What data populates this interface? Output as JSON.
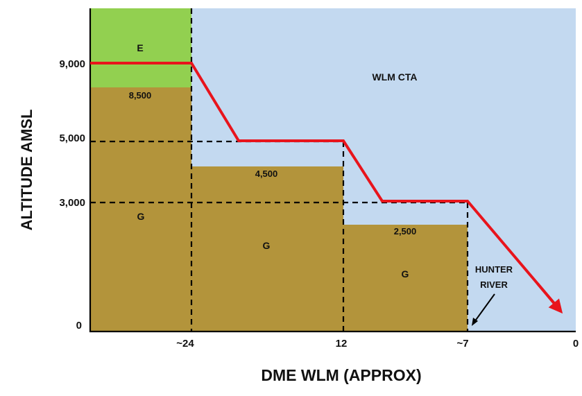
{
  "labels": {
    "y_axis": "ALTITUDE AMSL",
    "x_axis": "DME WLM (APPROX)"
  },
  "y_ticks": [
    "9,000",
    "5,000",
    "3,000",
    "0"
  ],
  "x_ticks": [
    "~24",
    "12",
    "~7",
    "0"
  ],
  "zones": {
    "class_e": "E",
    "cta": "WLM CTA",
    "g1": "G",
    "g2": "G",
    "g3": "G",
    "base_1": "8,500",
    "base_2": "4,500",
    "base_3": "2,500"
  },
  "annotations": {
    "river_line1": "HUNTER",
    "river_line2": "RIVER"
  },
  "colors": {
    "cta": "#c3d9f0",
    "class_e": "#92d050",
    "class_g": "#b3943b",
    "profile": "#e8141c"
  }
}
